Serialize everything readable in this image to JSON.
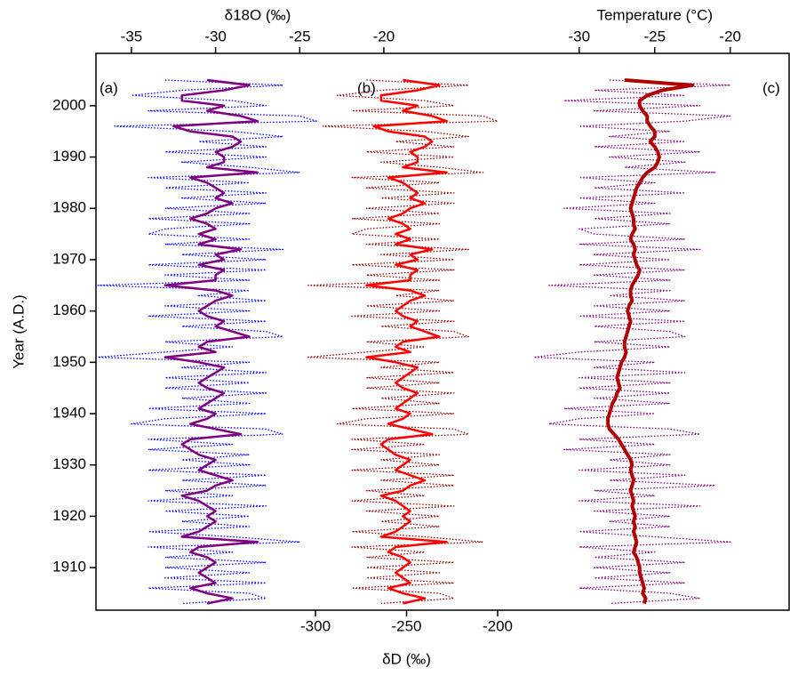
{
  "chart_data": {
    "type": "line",
    "ylabel": "Year (A.D.)",
    "ylim": [
      1901.7,
      2010.2
    ],
    "yticks": [
      1910,
      1920,
      1930,
      1940,
      1950,
      1960,
      1970,
      1980,
      1990,
      2000
    ],
    "axes": [
      {
        "label": "δ18O (‰)",
        "position": "top",
        "lim": [
          -37.11,
          4.09
        ],
        "ticks": [
          -35,
          -30,
          -25,
          -20
        ]
      },
      {
        "label": "δD (‰)",
        "position": "bottom",
        "lim": [
          -420.5,
          -40
        ],
        "ticks": [
          -300,
          -250,
          -200
        ]
      },
      {
        "label": "Temperature (°C)",
        "position": "top",
        "lim": [
          -62,
          -16.1
        ],
        "ticks": [
          -30,
          -25,
          -20
        ]
      }
    ],
    "panel_labels": [
      "(a)",
      "(b)",
      "(c)"
    ],
    "y": [
      2005,
      2004,
      2003,
      2002,
      2001,
      2000,
      1999,
      1998,
      1997,
      1996,
      1995,
      1994,
      1993,
      1992,
      1991,
      1990,
      1989,
      1988,
      1987,
      1986,
      1985,
      1984,
      1983,
      1982,
      1981,
      1980,
      1979,
      1978,
      1977,
      1976,
      1975,
      1974,
      1973,
      1972,
      1971,
      1970,
      1969,
      1968,
      1967,
      1966,
      1965,
      1964,
      1963,
      1962,
      1961,
      1960,
      1959,
      1958,
      1957,
      1956,
      1955,
      1954,
      1953,
      1952,
      1951,
      1950,
      1949,
      1948,
      1947,
      1946,
      1945,
      1944,
      1943,
      1942,
      1941,
      1940,
      1939,
      1938,
      1937,
      1936,
      1935,
      1934,
      1933,
      1932,
      1931,
      1930,
      1929,
      1928,
      1927,
      1926,
      1925,
      1924,
      1923,
      1922,
      1921,
      1920,
      1919,
      1918,
      1917,
      1916,
      1915,
      1914,
      1913,
      1912,
      1911,
      1910,
      1909,
      1908,
      1907,
      1906,
      1905,
      1904,
      1903
    ],
    "series": [
      {
        "axis": 0,
        "color": "#0000ff",
        "style": "dotted",
        "values": [
          -33,
          -26,
          -32,
          -35,
          -29,
          -27,
          -34,
          -25,
          -24,
          -36,
          -29,
          -26,
          -31,
          -27,
          -33,
          -27,
          -32,
          -28,
          -25,
          -34,
          -28,
          -33,
          -27,
          -32,
          -27,
          -33,
          -28,
          -34,
          -28,
          -33,
          -34,
          -28,
          -33,
          -26,
          -32,
          -27,
          -34,
          -27,
          -33,
          -28,
          -37,
          -28,
          -31,
          -27,
          -33,
          -28,
          -34,
          -27,
          -32,
          -27,
          -26,
          -33,
          -29,
          -33,
          -37,
          -28,
          -32,
          -27,
          -33,
          -28,
          -33,
          -27,
          -32,
          -28,
          -34,
          -27,
          -33,
          -35,
          -27,
          -26,
          -34,
          -29,
          -34,
          -28,
          -32,
          -28,
          -34,
          -27,
          -32,
          -27,
          -33,
          -29,
          -34,
          -27,
          -33,
          -28,
          -32,
          -28,
          -34,
          -29,
          -25,
          -34,
          -29,
          -33,
          -27,
          -33,
          -28,
          -33,
          -27,
          -34,
          -28,
          -27,
          -32
        ]
      },
      {
        "axis": 0,
        "color": "#800080",
        "style": "solid",
        "values": [
          -30.5,
          -28.0,
          -29.5,
          -32.0,
          -32.0,
          -29.5,
          -30.5,
          -28.5,
          -27.5,
          -32.5,
          -31.5,
          -29.0,
          -28.5,
          -29.0,
          -30.0,
          -29.5,
          -29.5,
          -30.5,
          -27.5,
          -31.5,
          -30.5,
          -30.0,
          -29.5,
          -30.0,
          -29.0,
          -30.0,
          -30.5,
          -31.5,
          -30.5,
          -30.0,
          -31.0,
          -30.0,
          -31.0,
          -28.5,
          -30.0,
          -29.5,
          -31.0,
          -29.5,
          -30.0,
          -30.0,
          -33.0,
          -30.0,
          -29.0,
          -30.0,
          -30.5,
          -31.0,
          -30.5,
          -29.5,
          -30.0,
          -29.0,
          -28.0,
          -30.5,
          -31.0,
          -30.0,
          -33.0,
          -31.0,
          -29.5,
          -30.0,
          -30.5,
          -31.0,
          -30.5,
          -29.5,
          -30.0,
          -30.5,
          -31.0,
          -30.0,
          -30.5,
          -31.5,
          -30.0,
          -28.5,
          -31.5,
          -32.0,
          -31.5,
          -31.0,
          -30.0,
          -30.5,
          -31.0,
          -30.0,
          -29.0,
          -30.0,
          -30.5,
          -32.0,
          -31.0,
          -30.5,
          -30.0,
          -30.5,
          -30.0,
          -30.5,
          -31.0,
          -32.0,
          -27.5,
          -31.0,
          -31.5,
          -30.5,
          -30.0,
          -30.5,
          -31.0,
          -30.5,
          -30.0,
          -31.5,
          -30.5,
          -29.0,
          -30.5
        ]
      },
      {
        "axis": 1,
        "color": "#8b0000",
        "style": "dotted",
        "values": [
          -272,
          -216,
          -264,
          -288,
          -240,
          -224,
          -280,
          -208,
          -200,
          -296,
          -240,
          -216,
          -256,
          -224,
          -272,
          -224,
          -264,
          -232,
          -208,
          -280,
          -232,
          -272,
          -224,
          -264,
          -224,
          -272,
          -232,
          -280,
          -232,
          -272,
          -280,
          -232,
          -272,
          -216,
          -264,
          -224,
          -280,
          -224,
          -272,
          -232,
          -304,
          -232,
          -256,
          -224,
          -272,
          -232,
          -280,
          -224,
          -264,
          -224,
          -216,
          -272,
          -240,
          -272,
          -304,
          -232,
          -264,
          -224,
          -272,
          -232,
          -272,
          -224,
          -264,
          -232,
          -280,
          -224,
          -272,
          -288,
          -224,
          -216,
          -280,
          -240,
          -280,
          -232,
          -264,
          -232,
          -280,
          -224,
          -264,
          -224,
          -272,
          -240,
          -280,
          -224,
          -272,
          -232,
          -264,
          -232,
          -280,
          -240,
          -208,
          -280,
          -240,
          -272,
          -224,
          -272,
          -232,
          -272,
          -224,
          -280,
          -232,
          -224,
          -264
        ]
      },
      {
        "axis": 1,
        "color": "#ff0000",
        "style": "solid",
        "values": [
          -252,
          -232,
          -244,
          -264,
          -264,
          -244,
          -252,
          -236,
          -228,
          -268,
          -260,
          -240,
          -236,
          -240,
          -248,
          -244,
          -244,
          -252,
          -228,
          -260,
          -252,
          -248,
          -244,
          -248,
          -240,
          -248,
          -252,
          -260,
          -252,
          -248,
          -256,
          -248,
          -256,
          -236,
          -248,
          -244,
          -256,
          -244,
          -248,
          -248,
          -272,
          -248,
          -240,
          -248,
          -252,
          -256,
          -252,
          -244,
          -248,
          -240,
          -232,
          -252,
          -256,
          -248,
          -272,
          -256,
          -244,
          -248,
          -252,
          -256,
          -252,
          -244,
          -248,
          -252,
          -256,
          -248,
          -252,
          -260,
          -248,
          -236,
          -260,
          -264,
          -260,
          -256,
          -248,
          -252,
          -256,
          -248,
          -240,
          -248,
          -252,
          -264,
          -256,
          -252,
          -248,
          -252,
          -248,
          -252,
          -256,
          -264,
          -228,
          -256,
          -260,
          -252,
          -248,
          -252,
          -256,
          -252,
          -248,
          -260,
          -252,
          -240,
          -252
        ]
      },
      {
        "axis": 2,
        "color": "#800080",
        "style": "dotted",
        "values": [
          -28,
          -20,
          -29,
          -23,
          -31,
          -22,
          -29,
          -20,
          -23,
          -30,
          -24,
          -28,
          -23,
          -29,
          -22,
          -28,
          -23,
          -27,
          -21,
          -30,
          -25,
          -29,
          -23,
          -30,
          -25,
          -31,
          -24,
          -29,
          -24,
          -30,
          -29,
          -23,
          -30,
          -22,
          -29,
          -24,
          -30,
          -23,
          -29,
          -24,
          -32,
          -24,
          -28,
          -23,
          -29,
          -24,
          -30,
          -23,
          -29,
          -24,
          -23,
          -29,
          -24,
          -30,
          -33,
          -25,
          -29,
          -23,
          -30,
          -24,
          -30,
          -24,
          -29,
          -24,
          -31,
          -25,
          -30,
          -32,
          -24,
          -22,
          -30,
          -25,
          -31,
          -24,
          -28,
          -24,
          -30,
          -23,
          -28,
          -21,
          -29,
          -25,
          -30,
          -22,
          -29,
          -24,
          -28,
          -24,
          -30,
          -25,
          -20,
          -30,
          -25,
          -29,
          -23,
          -29,
          -24,
          -29,
          -23,
          -30,
          -24,
          -22,
          -28
        ]
      },
      {
        "axis": 2,
        "color": "#b00000",
        "style": "thick",
        "values": [
          -27.0,
          -22.5,
          -24.5,
          -25.5,
          -26.0,
          -26.0,
          -25.8,
          -25.5,
          -25.5,
          -25.3,
          -25.0,
          -25.0,
          -25.3,
          -25.0,
          -24.8,
          -24.7,
          -24.8,
          -25.0,
          -25.5,
          -25.8,
          -26.0,
          -26.2,
          -26.3,
          -26.4,
          -26.5,
          -26.6,
          -26.5,
          -26.4,
          -26.4,
          -26.3,
          -26.5,
          -26.6,
          -26.4,
          -26.3,
          -26.4,
          -26.3,
          -26.2,
          -26.0,
          -26.1,
          -26.3,
          -26.5,
          -26.6,
          -26.6,
          -26.5,
          -26.7,
          -26.8,
          -26.7,
          -26.6,
          -26.7,
          -26.8,
          -26.9,
          -27.0,
          -27.0,
          -26.9,
          -27.0,
          -27.2,
          -27.3,
          -27.4,
          -27.5,
          -27.4,
          -27.3,
          -27.5,
          -27.6,
          -27.8,
          -27.9,
          -28.0,
          -28.1,
          -28.1,
          -28.0,
          -27.7,
          -27.4,
          -27.2,
          -27.0,
          -26.8,
          -26.6,
          -26.5,
          -26.6,
          -26.5,
          -26.4,
          -26.5,
          -26.6,
          -26.5,
          -26.4,
          -26.5,
          -26.4,
          -26.3,
          -26.4,
          -26.3,
          -26.4,
          -26.3,
          -26.2,
          -26.3,
          -26.4,
          -26.2,
          -26.1,
          -26.0,
          -26.0,
          -25.9,
          -25.8,
          -25.7,
          -25.8,
          -25.6,
          -25.7
        ]
      }
    ]
  }
}
